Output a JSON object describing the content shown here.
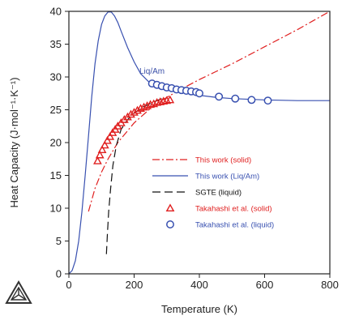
{
  "chart_data": {
    "type": "line",
    "title": "",
    "xlabel": "Temperature (K)",
    "ylabel": "Heat Capacity (J·mol⁻¹·K⁻¹)",
    "xlim": [
      0,
      800
    ],
    "ylim": [
      0,
      40
    ],
    "xticks": [
      0,
      200,
      400,
      600,
      800
    ],
    "yticks": [
      0,
      5,
      10,
      15,
      20,
      25,
      30,
      35,
      40
    ],
    "grid": false,
    "legend_position": "bottom-right",
    "annotation": "Liq/Am",
    "colors": {
      "solid": "#e02020",
      "liqam": "#3850b0",
      "sgte": "#111111",
      "axis": "#222222"
    },
    "series": [
      {
        "name": "This work (solid)",
        "style": "dash-dot",
        "color": "#e02020",
        "x": [
          60,
          80,
          100,
          120,
          150,
          200,
          250,
          300,
          350,
          400,
          450,
          500,
          550,
          600,
          650,
          700,
          750,
          800
        ],
        "y": [
          9.5,
          13.0,
          15.5,
          17.5,
          20.0,
          23.0,
          25.2,
          26.9,
          28.3,
          29.6,
          30.8,
          32.0,
          33.3,
          34.6,
          35.9,
          37.2,
          38.6,
          40.0
        ]
      },
      {
        "name": "This work (Liq/Am)",
        "style": "solid",
        "color": "#3850b0",
        "x": [
          0,
          10,
          20,
          30,
          40,
          50,
          60,
          70,
          80,
          90,
          100,
          110,
          120,
          130,
          140,
          150,
          160,
          180,
          200,
          220,
          250,
          300,
          350,
          400,
          450,
          500,
          600,
          700,
          800
        ],
        "y": [
          0,
          0.5,
          2.0,
          5.0,
          9.5,
          15.0,
          21.0,
          27.0,
          32.0,
          35.5,
          38.0,
          39.3,
          39.9,
          39.9,
          39.3,
          38.3,
          37.0,
          34.5,
          32.3,
          30.5,
          29.0,
          28.0,
          27.6,
          27.2,
          26.9,
          26.7,
          26.5,
          26.4,
          26.4
        ]
      },
      {
        "name": "SGTE (liquid)",
        "style": "dashed",
        "color": "#111111",
        "x": [
          115,
          118,
          122,
          128,
          135,
          145,
          160,
          180,
          200,
          230,
          260,
          290
        ],
        "y": [
          3.0,
          6.0,
          9.5,
          13.0,
          16.5,
          19.5,
          22.0,
          23.5,
          24.5,
          25.5,
          26.2,
          26.8
        ]
      },
      {
        "name": "Takahashi et al. (solid)",
        "style": "triangle",
        "color": "#e02020",
        "x": [
          88,
          95,
          102,
          110,
          118,
          126,
          134,
          142,
          150,
          160,
          170,
          180,
          190,
          200,
          210,
          220,
          230,
          240,
          250,
          260,
          270,
          280,
          290,
          300,
          310
        ],
        "y": [
          17.2,
          18.1,
          18.9,
          19.6,
          20.3,
          20.9,
          21.5,
          22.0,
          22.5,
          23.0,
          23.5,
          23.9,
          24.3,
          24.6,
          24.9,
          25.2,
          25.4,
          25.6,
          25.8,
          25.9,
          26.1,
          26.2,
          26.3,
          26.4,
          26.5
        ]
      },
      {
        "name": "Takahashi et al. (liquid)",
        "style": "circle",
        "color": "#3850b0",
        "x": [
          255,
          270,
          285,
          300,
          315,
          330,
          345,
          360,
          375,
          390,
          400,
          460,
          510,
          560,
          610
        ],
        "y": [
          29.0,
          28.8,
          28.6,
          28.4,
          28.3,
          28.1,
          28.0,
          27.9,
          27.8,
          27.7,
          27.5,
          27.0,
          26.7,
          26.5,
          26.4
        ]
      }
    ]
  }
}
